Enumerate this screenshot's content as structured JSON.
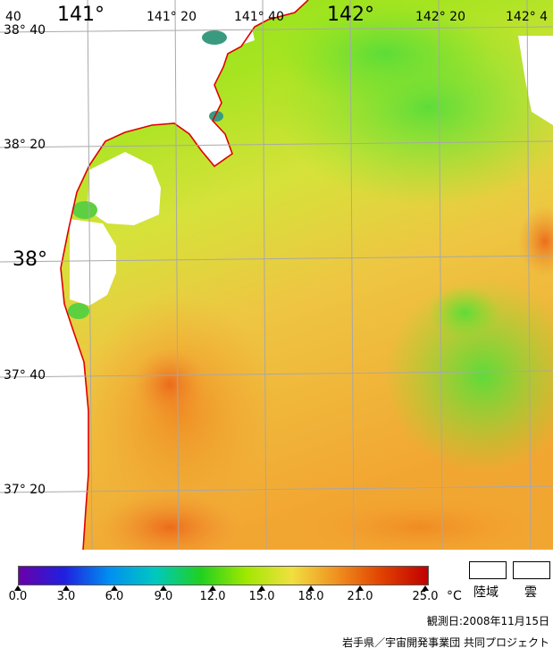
{
  "map": {
    "longitude_labels": [
      "40",
      "141°",
      "141° 20",
      "141° 40",
      "142°",
      "142° 20",
      "142° 4"
    ],
    "latitude_labels": [
      "38° 40",
      "38° 20",
      "38°",
      "37° 40",
      "37° 20"
    ],
    "colors": {
      "coast_line": "#e00000",
      "grid_line": "#a8a8a8",
      "land": "#ffffff"
    }
  },
  "colorbar": {
    "ticks": [
      "0.0",
      "3.0",
      "6.0",
      "9.0",
      "12.0",
      "15.0",
      "18.0",
      "21.0",
      "25.0"
    ],
    "unit": "°C",
    "gradient_colors": [
      "#6a00a8",
      "#2020e0",
      "#0090f0",
      "#00c8c0",
      "#20d020",
      "#a0e800",
      "#f0e040",
      "#f09020",
      "#e04000",
      "#c00000"
    ]
  },
  "legend": {
    "land_label": "陸域",
    "cloud_label": "雲"
  },
  "footer": {
    "observation_date": "観測日:2008年11月15日",
    "credit": "岩手県／宇宙開発事業団 共同プロジェクト"
  }
}
